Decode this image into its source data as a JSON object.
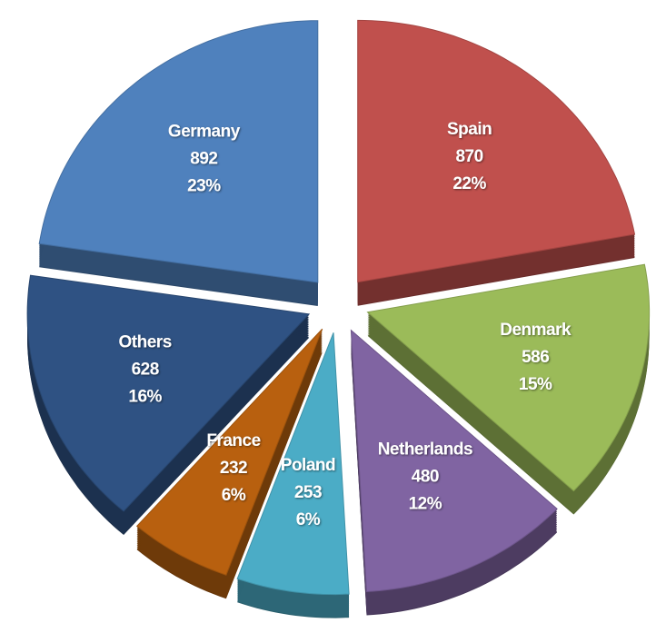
{
  "chart_data": {
    "type": "pie",
    "categories": [
      "Germany",
      "Spain",
      "Denmark",
      "Netherlands",
      "Poland",
      "France",
      "Others"
    ],
    "values": [
      892,
      870,
      586,
      480,
      253,
      232,
      628
    ],
    "percent_labels": [
      "23%",
      "22%",
      "15%",
      "12%",
      "6%",
      "6%",
      "16%"
    ],
    "colors": [
      "#4f81bd",
      "#c0504d",
      "#9bbb59",
      "#8064a2",
      "#4bacc6",
      "#b8600f",
      "#2f5283"
    ]
  }
}
